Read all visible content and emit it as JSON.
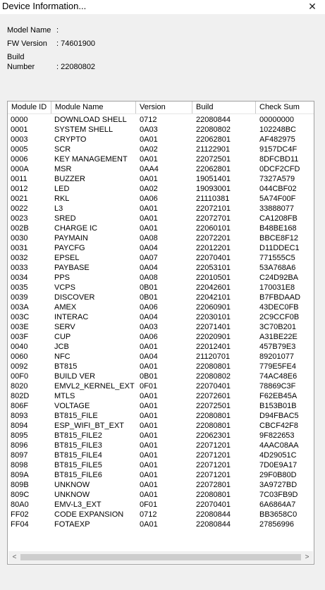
{
  "window": {
    "title": "Device Information...",
    "close_glyph": "✕"
  },
  "info": {
    "model_name": {
      "label": "Model Name",
      "value": ":"
    },
    "fw_version": {
      "label": "FW Version",
      "value": ": 74601900"
    },
    "build_number": {
      "label": "Build Number",
      "value": ": 22080802"
    }
  },
  "table": {
    "columns": [
      "Module ID",
      "Module Name",
      "Version",
      "Build",
      "Check Sum"
    ],
    "rows": [
      [
        "0000",
        "DOWNLOAD SHELL",
        "0712",
        "22080844",
        "00000000"
      ],
      [
        "0001",
        "SYSTEM SHELL",
        "0A03",
        "22080802",
        "102248BC"
      ],
      [
        "0003",
        "CRYPTO",
        "0A01",
        "22062801",
        "AF482975"
      ],
      [
        "0005",
        "SCR",
        "0A02",
        "21122901",
        "9157DC4F"
      ],
      [
        "0006",
        "KEY MANAGEMENT",
        "0A01",
        "22072501",
        "8DFCBD11"
      ],
      [
        "000A",
        "MSR",
        "0AA4",
        "22062801",
        "0DCF2CFD"
      ],
      [
        "0011",
        "BUZZER",
        "0A01",
        "19051401",
        "7327A579"
      ],
      [
        "0012",
        "LED",
        "0A02",
        "19093001",
        "044CBF02"
      ],
      [
        "0021",
        "RKL",
        "0A06",
        "21110381",
        "5A74F00F"
      ],
      [
        "0022",
        "L3",
        "0A01",
        "22072101",
        "33888077"
      ],
      [
        "0023",
        "SRED",
        "0A01",
        "22072701",
        "CA1208FB"
      ],
      [
        "002B",
        "CHARGE IC",
        "0A01",
        "22060101",
        "B48BE168"
      ],
      [
        "0030",
        "PAYMAIN",
        "0A08",
        "22072201",
        "BBCE8F12"
      ],
      [
        "0031",
        "PAYCFG",
        "0A04",
        "22012201",
        "D11DDEC1"
      ],
      [
        "0032",
        "EPSEL",
        "0A07",
        "22070401",
        "771555C5"
      ],
      [
        "0033",
        "PAYBASE",
        "0A04",
        "22053101",
        "53A768A6"
      ],
      [
        "0034",
        "PPS",
        "0A08",
        "22010501",
        "C24D92BA"
      ],
      [
        "0035",
        "VCPS",
        "0B01",
        "22042601",
        "170031E8"
      ],
      [
        "0039",
        "DISCOVER",
        "0B01",
        "22042101",
        "B7FBDAAD"
      ],
      [
        "003A",
        "AMEX",
        "0A06",
        "22060901",
        "43DEC0FB"
      ],
      [
        "003C",
        "INTERAC",
        "0A04",
        "22030101",
        "2C9CCF0B"
      ],
      [
        "003E",
        "SERV",
        "0A03",
        "22071401",
        "3C70B201"
      ],
      [
        "003F",
        "CUP",
        "0A06",
        "22020901",
        "A31BE22E"
      ],
      [
        "0040",
        "JCB",
        "0A01",
        "22012401",
        "457B79E3"
      ],
      [
        "0060",
        "NFC",
        "0A04",
        "21120701",
        "89201077"
      ],
      [
        "0092",
        "BT815",
        "0A01",
        "22080801",
        "779E5FE4"
      ],
      [
        "00F0",
        "BUILD VER",
        "0B01",
        "22080802",
        "74AC48E6"
      ],
      [
        "8020",
        "EMVL2_KERNEL_EXT",
        "0F01",
        "22070401",
        "78869C3F"
      ],
      [
        "802D",
        "MTLS",
        "0A01",
        "22072601",
        "F62EB45A"
      ],
      [
        "806F",
        "VOLTAGE",
        "0A01",
        "22072501",
        "B153B01B"
      ],
      [
        "8093",
        "BT815_FILE",
        "0A01",
        "22080801",
        "D94FBAC5"
      ],
      [
        "8094",
        "ESP_WIFI_BT_EXT",
        "0A01",
        "22080801",
        "CBCF42F8"
      ],
      [
        "8095",
        "BT815_FILE2",
        "0A01",
        "22062301",
        "9F822653"
      ],
      [
        "8096",
        "BT815_FILE3",
        "0A01",
        "22071201",
        "4AAC08AA"
      ],
      [
        "8097",
        "BT815_FILE4",
        "0A01",
        "22071201",
        "4D29051C"
      ],
      [
        "8098",
        "BT815_FILE5",
        "0A01",
        "22071201",
        "7D0E9A17"
      ],
      [
        "809A",
        "BT815_FILE6",
        "0A01",
        "22071201",
        "29F0B80D"
      ],
      [
        "809B",
        "UNKNOW",
        "0A01",
        "22072801",
        "3A9727BD"
      ],
      [
        "809C",
        "UNKNOW",
        "0A01",
        "22080801",
        "7C03FB9D"
      ],
      [
        "80A0",
        "EMV-L3_EXT",
        "0F01",
        "22070401",
        "6A6864A7"
      ],
      [
        "FF02",
        "CODE EXPANSION",
        "0712",
        "22080844",
        "BB3658C0"
      ],
      [
        "FF04",
        "FOTAEXP",
        "0A01",
        "22080844",
        "27856996"
      ]
    ]
  },
  "scrollbar": {
    "left_glyph": "<",
    "right_glyph": ">"
  },
  "icons": {
    "close": "close-icon",
    "scroll_left": "chevron-left-icon",
    "scroll_right": "chevron-right-icon"
  }
}
